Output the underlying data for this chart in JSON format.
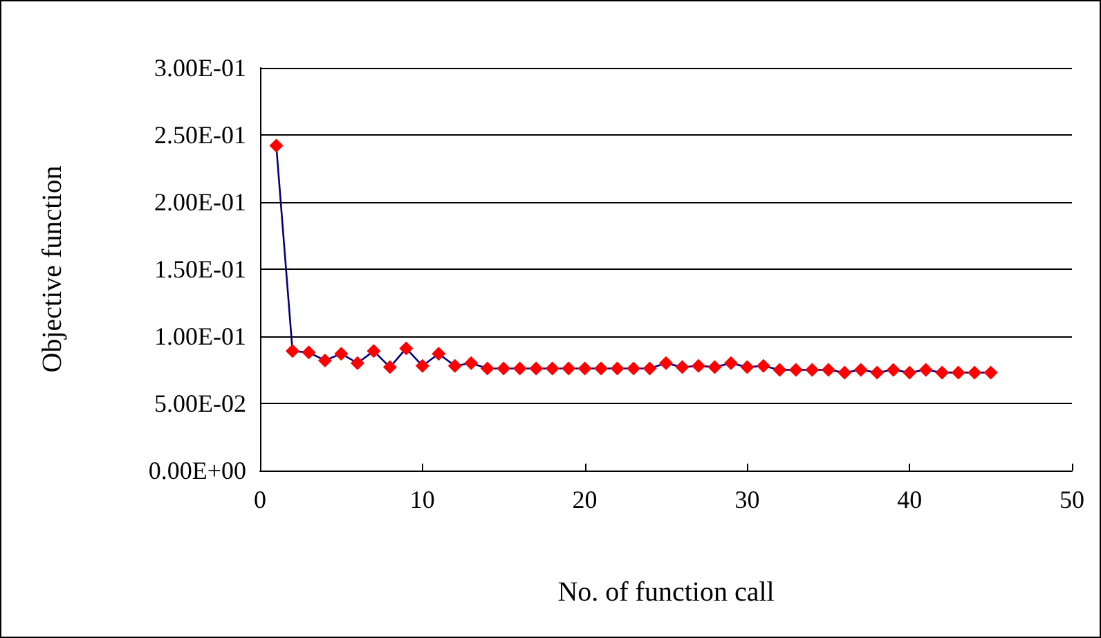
{
  "chart_data": {
    "type": "line",
    "xlabel": "No. of function call",
    "ylabel": "Objective function",
    "x": [
      1,
      2,
      3,
      4,
      5,
      6,
      7,
      8,
      9,
      10,
      11,
      12,
      13,
      14,
      15,
      16,
      17,
      18,
      19,
      20,
      21,
      22,
      23,
      24,
      25,
      26,
      27,
      28,
      29,
      30,
      31,
      32,
      33,
      34,
      35,
      36,
      37,
      38,
      39,
      40,
      41,
      42,
      43,
      44,
      45
    ],
    "series": [
      {
        "color": "#ff0000",
        "values": [
          0.242,
          0.089,
          0.088,
          0.082,
          0.087,
          0.08,
          0.089,
          0.077,
          0.091,
          0.078,
          0.087,
          0.078,
          0.08,
          0.076,
          0.076,
          0.076,
          0.076,
          0.076,
          0.076,
          0.076,
          0.076,
          0.076,
          0.076,
          0.076,
          0.08,
          0.077,
          0.078,
          0.077,
          0.08,
          0.077,
          0.078,
          0.075,
          0.075,
          0.075,
          0.075,
          0.073,
          0.075,
          0.073,
          0.075,
          0.073,
          0.075,
          0.073,
          0.073,
          0.073,
          0.073
        ]
      }
    ],
    "xlim": [
      0,
      50
    ],
    "xticks": [
      0,
      10,
      20,
      30,
      40,
      50
    ],
    "ylim": [
      0,
      0.3
    ],
    "yticks": [
      {
        "value": 0,
        "label": "0.00E+00"
      },
      {
        "value": 0.05,
        "label": "5.00E-02"
      },
      {
        "value": 0.1,
        "label": "1.00E-01"
      },
      {
        "value": 0.15,
        "label": "1.50E-01"
      },
      {
        "value": 0.2,
        "label": "2.00E-01"
      },
      {
        "value": 0.25,
        "label": "2.50E-01"
      },
      {
        "value": 0.3,
        "label": "3.00E-01"
      }
    ],
    "grid": "y",
    "marker": "diamond",
    "line_style": "solid"
  }
}
